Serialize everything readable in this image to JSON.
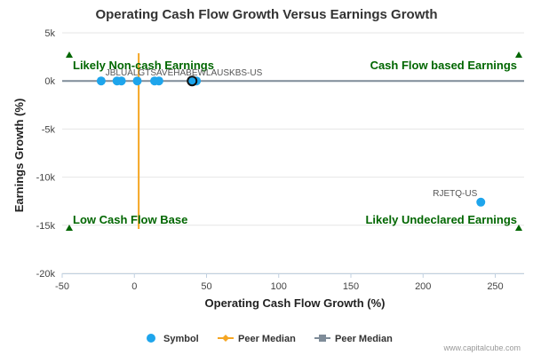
{
  "chart_data": {
    "type": "scatter",
    "title": "Operating Cash Flow Growth Versus Earnings Growth",
    "xlabel": "Operating Cash Flow Growth (%)",
    "ylabel": "Earnings Growth (%)",
    "xlim": [
      -50,
      270
    ],
    "ylim": [
      -20000,
      5000
    ],
    "xticks": [
      -50,
      0,
      50,
      100,
      150,
      200,
      250
    ],
    "yticks": [
      -20000,
      -15000,
      -10000,
      -5000,
      0,
      5000
    ],
    "xtick_labels": [
      "-50",
      "0",
      "50",
      "100",
      "150",
      "200",
      "250"
    ],
    "ytick_labels": [
      "-20k",
      "-15k",
      "-10k",
      "-5k",
      "0k",
      "5k"
    ],
    "series": [
      {
        "name": "Symbol",
        "color": "#1ea5ec",
        "points": [
          {
            "x": -23,
            "y": 0,
            "label": "JBLU-US"
          },
          {
            "x": -12,
            "y": 0,
            "label": ""
          },
          {
            "x": -9,
            "y": 0,
            "label": ""
          },
          {
            "x": 2,
            "y": 0,
            "label": "ALGT-US"
          },
          {
            "x": 14,
            "y": 0,
            "label": "SAVE-US"
          },
          {
            "x": 17,
            "y": 0,
            "label": ""
          },
          {
            "x": 40,
            "y": 0,
            "label": "HA-US"
          },
          {
            "x": 43,
            "y": 0,
            "label": ""
          },
          {
            "x": 240,
            "y": -12600,
            "label": "RJETQ-US"
          }
        ],
        "overlap_label": "JBLUALGTSAVEHABEWLAUSKBS-US"
      }
    ],
    "highlight_point": {
      "x": 40,
      "y": 0
    },
    "peer_median_x": {
      "name": "Peer Median",
      "value": 3,
      "color": "#f5a623"
    },
    "peer_median_y": {
      "name": "Peer Median",
      "value": 0,
      "color": "#7f8c99"
    },
    "quadrant_labels": {
      "top_left": "Likely Non-cash Earnings",
      "top_right": "Cash Flow based Earnings",
      "bottom_left": "Low Cash Flow Base",
      "bottom_right": "Likely Undeclared Earnings"
    },
    "quadrant_marker_color": "#006600",
    "legend": {
      "placement": "bottom-center",
      "items": [
        "Symbol",
        "Peer Median",
        "Peer Median"
      ]
    },
    "credit": "www.capitalcube.com"
  }
}
